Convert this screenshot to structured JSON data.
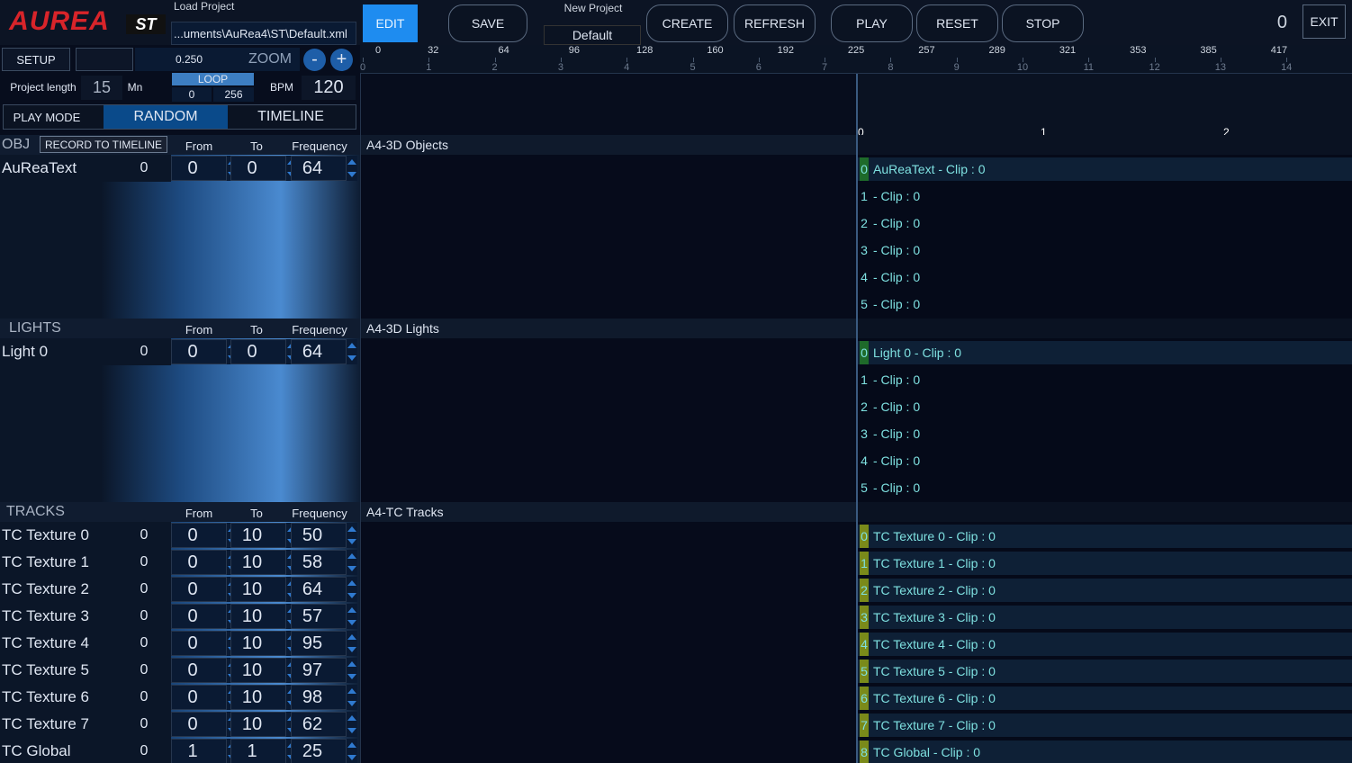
{
  "header": {
    "logo": "AUREA",
    "edition": "ST",
    "load_project": {
      "label": "Load Project",
      "path": "...uments\\AuRea4\\ST\\Default.xml"
    },
    "buttons_left": [
      "EDIT",
      "SAVE"
    ],
    "new_project": {
      "label": "New Project",
      "name": "Default"
    },
    "buttons_mid": [
      "CREATE",
      "REFRESH"
    ],
    "buttons_transport": [
      "PLAY",
      "RESET",
      "STOP"
    ],
    "counter": 0,
    "exit": "EXIT"
  },
  "controls": {
    "setup": "SETUP",
    "zoom_value": "0.250",
    "zoom_label": "ZOOM",
    "zoom_out": "-",
    "zoom_in": "+",
    "project_length": {
      "label": "Project length",
      "value": 15,
      "unit": "Mn"
    },
    "loop": {
      "label": "LOOP",
      "start": 0,
      "end": 256
    },
    "bpm": {
      "label": "BPM",
      "value": 120
    },
    "play_mode": {
      "label": "PLAY MODE",
      "options": [
        "RANDOM",
        "TIMELINE"
      ]
    }
  },
  "ruler": {
    "beats": [
      0,
      32,
      64,
      96,
      128,
      160,
      192,
      225,
      257,
      289,
      321,
      353,
      385,
      417
    ],
    "bars": [
      0,
      1,
      2,
      3,
      4,
      5,
      6,
      7,
      8,
      9,
      10,
      11,
      12,
      13,
      14
    ]
  },
  "timeline_marks": [
    0,
    1,
    2
  ],
  "sections": [
    {
      "title": "OBJ",
      "action": "RECORD TO TIMELINE",
      "columns": [
        "From",
        "To",
        "Frequency"
      ],
      "track_title": "A4-3D Objects",
      "rows": [
        {
          "name": "AuReaText",
          "value": 0,
          "from": 0,
          "to": 0,
          "frequency": 64
        }
      ],
      "clips": [
        {
          "index": 0,
          "label": "AuReaText - Clip : 0"
        },
        {
          "index": 1,
          "label": "- Clip : 0"
        },
        {
          "index": 2,
          "label": "- Clip : 0"
        },
        {
          "index": 3,
          "label": "- Clip : 0"
        },
        {
          "index": 4,
          "label": "- Clip : 0"
        },
        {
          "index": 5,
          "label": "- Clip : 0"
        }
      ]
    },
    {
      "title": "LIGHTS",
      "columns": [
        "From",
        "To",
        "Frequency"
      ],
      "track_title": "A4-3D Lights",
      "rows": [
        {
          "name": "Light 0",
          "value": 0,
          "from": 0,
          "to": 0,
          "frequency": 64
        }
      ],
      "clips": [
        {
          "index": 0,
          "label": "Light 0 - Clip : 0"
        },
        {
          "index": 1,
          "label": "- Clip : 0"
        },
        {
          "index": 2,
          "label": "- Clip : 0"
        },
        {
          "index": 3,
          "label": "- Clip : 0"
        },
        {
          "index": 4,
          "label": "- Clip : 0"
        },
        {
          "index": 5,
          "label": "- Clip : 0"
        }
      ]
    },
    {
      "title": "TRACKS",
      "columns": [
        "From",
        "To",
        "Frequency"
      ],
      "track_title": "A4-TC Tracks",
      "rows": [
        {
          "name": "TC Texture 0",
          "value": 0,
          "from": 0,
          "to": 10,
          "frequency": 50
        },
        {
          "name": "TC Texture 1",
          "value": 0,
          "from": 0,
          "to": 10,
          "frequency": 58
        },
        {
          "name": "TC Texture 2",
          "value": 0,
          "from": 0,
          "to": 10,
          "frequency": 64
        },
        {
          "name": "TC Texture 3",
          "value": 0,
          "from": 0,
          "to": 10,
          "frequency": 57
        },
        {
          "name": "TC Texture 4",
          "value": 0,
          "from": 0,
          "to": 10,
          "frequency": 95
        },
        {
          "name": "TC Texture 5",
          "value": 0,
          "from": 0,
          "to": 10,
          "frequency": 97
        },
        {
          "name": "TC Texture 6",
          "value": 0,
          "from": 0,
          "to": 10,
          "frequency": 98
        },
        {
          "name": "TC Texture 7",
          "value": 0,
          "from": 0,
          "to": 10,
          "frequency": 62
        },
        {
          "name": "TC Global",
          "value": 0,
          "from": 1,
          "to": 1,
          "frequency": 25
        }
      ],
      "clips": [
        {
          "index": 0,
          "label": "TC Texture 0 - Clip : 0"
        },
        {
          "index": 1,
          "label": "TC Texture 1 - Clip : 0"
        },
        {
          "index": 2,
          "label": "TC Texture 2 - Clip : 0"
        },
        {
          "index": 3,
          "label": "TC Texture 3 - Clip : 0"
        },
        {
          "index": 4,
          "label": "TC Texture 4 - Clip : 0"
        },
        {
          "index": 5,
          "label": "TC Texture 5 - Clip : 0"
        },
        {
          "index": 6,
          "label": "TC Texture 6 - Clip : 0"
        },
        {
          "index": 7,
          "label": "TC Texture 7 - Clip : 0"
        },
        {
          "index": 8,
          "label": "TC Global  - Clip : 0"
        }
      ]
    }
  ]
}
